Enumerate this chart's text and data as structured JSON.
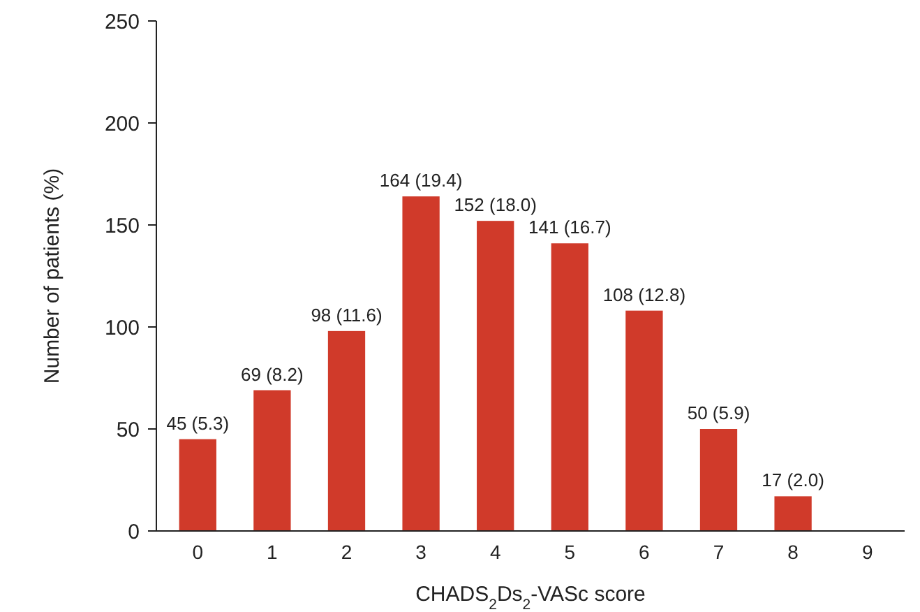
{
  "chart_data": {
    "type": "bar",
    "xlabel": "CHADS$_{2}$Ds$_{2}$-VASc score",
    "ylabel": "Number of patients (%)",
    "categories": [
      "0",
      "1",
      "2",
      "3",
      "4",
      "5",
      "6",
      "7",
      "8",
      "9"
    ],
    "values": [
      45,
      69,
      98,
      164,
      152,
      141,
      108,
      50,
      17,
      null
    ],
    "value_labels": [
      "45 (5.3)",
      "69 (8.2)",
      "98 (11.6)",
      "164 (19.4)",
      "152 (18.0)",
      "141 (16.7)",
      "108 (12.8)",
      "50 (5.9)",
      "17 (2.0)",
      null
    ],
    "color": "#d03a2a",
    "ylim": [
      0,
      250
    ],
    "yticks": [
      0,
      50,
      100,
      150,
      200,
      250
    ],
    "grid": false
  }
}
